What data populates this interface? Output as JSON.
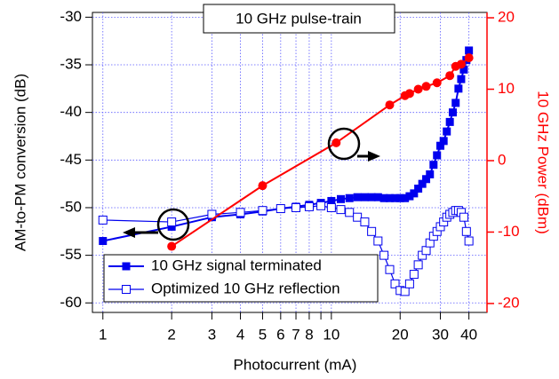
{
  "chart_data": {
    "type": "line",
    "title": "10 GHz pulse-train",
    "x_label": "Photocurrent (mA)",
    "y_label": "AM-to-PM conversion (dB)",
    "y2_label": "10 GHz Power (dBm)",
    "xscale": "log",
    "xlim": [
      0.9,
      48
    ],
    "xticks": [
      1,
      2,
      3,
      4,
      5,
      6,
      7,
      8,
      10,
      20,
      30,
      40
    ],
    "xminor_ticks": [
      9
    ],
    "ylim": [
      -61,
      -29.5
    ],
    "yticks": [
      -30,
      -35,
      -40,
      -45,
      -50,
      -55,
      -60
    ],
    "y2lim": [
      -21.25,
      20.75
    ],
    "y2ticks": [
      20,
      10,
      0,
      -10,
      -20
    ],
    "y2_color": "#ff0000",
    "grid": true,
    "legend": "lower left",
    "series": [
      {
        "name": "10 GHz signal terminated",
        "color": "#0000ee",
        "marker": "filled-square",
        "x": [
          1,
          2,
          3,
          4,
          5,
          6,
          7,
          8,
          9,
          10,
          11,
          12,
          13,
          14,
          15,
          16,
          17,
          18,
          19,
          20,
          21,
          22,
          23,
          24,
          25,
          26,
          27,
          28,
          29,
          30,
          31,
          32,
          33,
          34,
          35,
          36,
          37,
          38,
          39,
          40
        ],
        "values": [
          -53.5,
          -52,
          -51,
          -50.7,
          -50.4,
          -50.1,
          -49.9,
          -49.7,
          -49.5,
          -49.3,
          -49.1,
          -49,
          -48.9,
          -48.9,
          -48.9,
          -48.9,
          -49,
          -49,
          -49,
          -49,
          -49,
          -48.8,
          -48.5,
          -48,
          -47.5,
          -47,
          -46.5,
          -45.5,
          -44.5,
          -43.5,
          -43,
          -42,
          -41,
          -40,
          -39,
          -37.5,
          -36.5,
          -35.5,
          -34.5,
          -33.5
        ]
      },
      {
        "name": "Optimized 10 GHz reflection",
        "color": "#0000ee",
        "marker": "open-square",
        "x": [
          1,
          2,
          3,
          4,
          5,
          6,
          7,
          8,
          9,
          10,
          11,
          12,
          13,
          14,
          15,
          16,
          17,
          18,
          19,
          20,
          21,
          22,
          23,
          24,
          25,
          26,
          27,
          28,
          29,
          30,
          31,
          32,
          33,
          34,
          35,
          36,
          37,
          38,
          39,
          40
        ],
        "values": [
          -51.3,
          -51.5,
          -50.7,
          -50.5,
          -50.3,
          -50.1,
          -50,
          -49.9,
          -49.8,
          -50,
          -50.2,
          -50.5,
          -51,
          -51.5,
          -52.5,
          -53.5,
          -55,
          -56.5,
          -58,
          -58.7,
          -58.8,
          -58,
          -57,
          -56,
          -55,
          -54.5,
          -53.7,
          -53,
          -52.5,
          -52,
          -51.5,
          -51,
          -50.7,
          -50.5,
          -50.3,
          -50.3,
          -50.5,
          -51,
          -52.5,
          -53.5
        ]
      },
      {
        "color": "#ff0000",
        "marker": "circle",
        "axis": "y2",
        "x": [
          2,
          5,
          10.5,
          18,
          21,
          22,
          24,
          26,
          29,
          33,
          35,
          37,
          40
        ],
        "values": [
          -12,
          -3.5,
          2.5,
          7.8,
          9.1,
          9.4,
          10,
          10.4,
          10.9,
          11.9,
          13.2,
          13.5,
          14.4
        ]
      }
    ]
  }
}
